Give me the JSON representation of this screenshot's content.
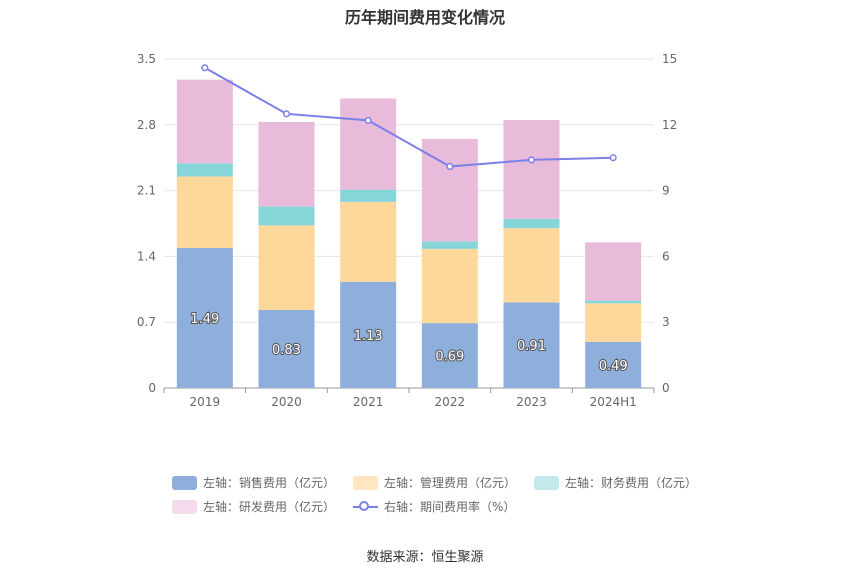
{
  "chart_data": {
    "type": "bar",
    "title": "历年期间费用变化情况",
    "categories": [
      "2019",
      "2020",
      "2021",
      "2022",
      "2023",
      "2024H1"
    ],
    "left_axis": {
      "min": 0,
      "max": 3.5,
      "ticks": [
        "0",
        "0.7",
        "1.4",
        "2.1",
        "2.8",
        "3.5"
      ]
    },
    "right_axis": {
      "min": 0,
      "max": 15,
      "ticks": [
        "0",
        "3",
        "6",
        "9",
        "12",
        "15"
      ]
    },
    "grid": true,
    "legend_position": "bottom",
    "stacked_series": [
      {
        "name": "左轴：销售费用（亿元）",
        "color": "#8eaedb",
        "values": [
          1.49,
          0.83,
          1.13,
          0.69,
          0.91,
          0.49
        ],
        "labels": [
          "1.49",
          "0.83",
          "1.13",
          "0.69",
          "0.91",
          "0.49"
        ]
      },
      {
        "name": "左轴：管理费用（亿元）",
        "color": "#fed89b",
        "values": [
          0.76,
          0.9,
          0.85,
          0.79,
          0.79,
          0.41
        ]
      },
      {
        "name": "左轴：财务费用（亿元）",
        "color": "#86d5d9",
        "values": [
          0.14,
          0.2,
          0.13,
          0.08,
          0.1,
          0.03
        ]
      },
      {
        "name": "左轴：研发费用（亿元）",
        "color": "#e8bbdb",
        "values": [
          0.89,
          0.9,
          0.97,
          1.09,
          1.05,
          0.62
        ]
      }
    ],
    "line_series": {
      "name": "右轴：期间费用率（%）",
      "color": "#7b7fea",
      "values": [
        14.6,
        12.5,
        12.2,
        10.1,
        10.4,
        10.5
      ]
    },
    "source": "数据来源：恒生聚源"
  },
  "legend_colors": {
    "sales": "#8eaedb",
    "admin": "#fde6c0",
    "finance": "#c2eaec",
    "rnd": "#f4dcec"
  }
}
